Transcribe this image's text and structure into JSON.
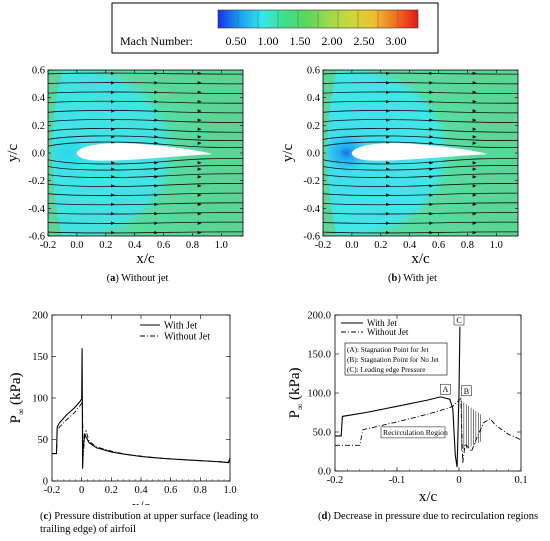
{
  "colorbar": {
    "label": "Mach Number:",
    "ticks": [
      "0.50",
      "1.00",
      "1.50",
      "2.00",
      "2.50",
      "3.00"
    ],
    "colors": [
      "#1a30e6",
      "#1aa0f0",
      "#36e8e8",
      "#3ce08c",
      "#5cd65c",
      "#9ed84a",
      "#ccd936",
      "#f0c030",
      "#f07020",
      "#e01a1a"
    ]
  },
  "panels": {
    "a": {
      "letter": "a",
      "caption": "Without jet",
      "xlabel": "x/c",
      "ylabel": "y/c",
      "xticks": [
        "-0.2",
        "0.0",
        "0.2",
        "0.4",
        "0.6",
        "0.8",
        "1.0"
      ],
      "yticks": [
        "0.6",
        "0.4",
        "0.2",
        "0.0",
        "-0.2",
        "-0.4",
        "-0.6"
      ]
    },
    "b": {
      "letter": "b",
      "caption": "With jet",
      "xlabel": "x/c",
      "ylabel": "y/c",
      "xticks": [
        "-0.2",
        "0.0",
        "0.2",
        "0.4",
        "0.6",
        "0.8",
        "1.0"
      ],
      "yticks": [
        "0.6",
        "0.4",
        "0.2",
        "0.0",
        "-0.2",
        "-0.4",
        "-0.6"
      ]
    },
    "c": {
      "letter": "c",
      "caption": "Pressure distribution at upper surface (leading to trailing edge) of airfoil",
      "ylabel_main": "P",
      "ylabel_sub": "∞",
      "ylabel_unit": "(kPa)",
      "xlabel": "x/c"
    },
    "d": {
      "letter": "d",
      "caption": "Decrease in pressure due to recirculation regions",
      "ylabel_main": "P",
      "ylabel_sub": "∞",
      "ylabel_unit": "(kPa)",
      "xlabel": "x/c",
      "annotations": {
        "A": "A",
        "B": "B",
        "C": "C",
        "note_a": "(A): Stagnation Point for Jet",
        "note_b": "(B): Stagnation Point for No Jet",
        "note_c": "(C): Leading edge Pressure",
        "region": "Recirculation Region"
      }
    }
  },
  "chart_data": [
    {
      "type": "line",
      "xlabel": "x/c",
      "ylabel": "P∞ (kPa)",
      "xlim": [
        -0.2,
        1.0
      ],
      "ylim": [
        0,
        200
      ],
      "xticks": [
        "-0.2",
        "0",
        "0.2",
        "0.4",
        "0.6",
        "0.8",
        "1.0"
      ],
      "yticks": [
        "0",
        "50",
        "100",
        "150",
        "200"
      ],
      "legend_position": "top-right",
      "series": [
        {
          "name": "With Jet",
          "style": "solid",
          "x": [
            -0.2,
            -0.17,
            -0.165,
            -0.15,
            -0.1,
            -0.05,
            -0.01,
            0.0,
            0.003,
            0.006,
            0.01,
            0.02,
            0.03,
            0.05,
            0.1,
            0.2,
            0.3,
            0.4,
            0.5,
            0.6,
            0.7,
            0.8,
            0.9,
            0.99,
            1.0
          ],
          "y": [
            33,
            33,
            65,
            70,
            80,
            88,
            96,
            99,
            160,
            15,
            40,
            56,
            53,
            46,
            40,
            35,
            32,
            29.5,
            28,
            26.5,
            25.5,
            24.5,
            23.5,
            22,
            28
          ]
        },
        {
          "name": "Without Jet",
          "style": "dash-dot",
          "x": [
            -0.2,
            -0.17,
            -0.165,
            -0.15,
            -0.1,
            -0.05,
            -0.01,
            0.0,
            0.005,
            0.01,
            0.02,
            0.03,
            0.05,
            0.1,
            0.2,
            0.3,
            0.5,
            0.7,
            0.9,
            1.0
          ],
          "y": [
            33,
            33,
            60,
            65,
            74,
            82,
            91,
            94,
            97,
            30,
            52,
            60,
            48,
            41,
            36,
            32,
            28,
            25.5,
            23.5,
            23
          ]
        }
      ]
    },
    {
      "type": "line",
      "xlabel": "x/c",
      "ylabel": "P∞ (kPa)",
      "xlim": [
        -0.2,
        0.1
      ],
      "ylim": [
        0,
        200
      ],
      "xticks": [
        "-0.2",
        "-0.1",
        "0",
        "0.1"
      ],
      "yticks": [
        "0.0",
        "50.0",
        "100.0",
        "150.0",
        "200.0"
      ],
      "legend_position": "top-left",
      "series": [
        {
          "name": "With Jet",
          "style": "solid",
          "x": [
            -0.2,
            -0.19,
            -0.188,
            -0.15,
            -0.1,
            -0.05,
            -0.03,
            -0.015,
            -0.01,
            -0.006,
            -0.003,
            0.0,
            0.0015
          ],
          "y": [
            45,
            45,
            70,
            75,
            83,
            91,
            95,
            92,
            80,
            20,
            5,
            100,
            185
          ]
        },
        {
          "name": "Without Jet",
          "style": "dash-dot",
          "x": [
            -0.2,
            -0.16,
            -0.155,
            -0.1,
            -0.05,
            -0.02,
            -0.01,
            0.003,
            0.006,
            0.01,
            0.02,
            0.03,
            0.04,
            0.05,
            0.06,
            0.08,
            0.1
          ],
          "y": [
            33,
            33,
            53,
            63,
            73,
            80,
            83,
            93,
            10,
            35,
            25,
            45,
            62,
            67,
            58,
            47,
            40
          ]
        }
      ],
      "annotations": [
        "A",
        "B",
        "C",
        "(A): Stagnation Point for Jet",
        "(B): Stagnation Point for No Jet",
        "(C): Leading edge Pressure",
        "Recirculation Region"
      ]
    }
  ]
}
